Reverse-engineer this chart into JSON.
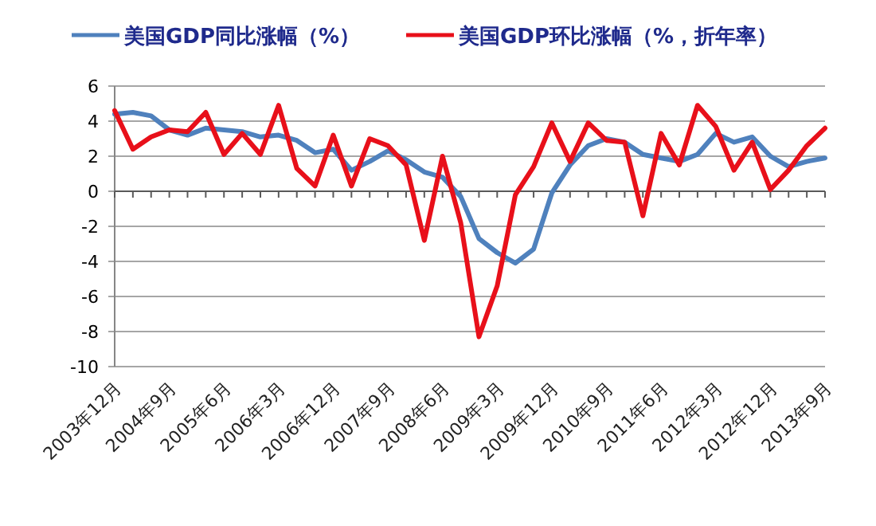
{
  "chart_data": {
    "type": "line",
    "categories": [
      "2003年12月",
      null,
      null,
      "2004年9月",
      null,
      null,
      "2005年6月",
      null,
      null,
      "2006年3月",
      null,
      null,
      "2006年12月",
      null,
      null,
      "2007年9月",
      null,
      null,
      "2008年6月",
      null,
      null,
      "2009年3月",
      null,
      null,
      "2009年12月",
      null,
      null,
      "2010年9月",
      null,
      null,
      "2011年6月",
      null,
      null,
      "2012年3月",
      null,
      null,
      "2012年12月",
      null,
      null,
      "2013年9月"
    ],
    "series": [
      {
        "name": "美国GDP同比涨幅（%）",
        "color": "#4f81bd",
        "values": [
          4.4,
          4.5,
          4.3,
          3.5,
          3.2,
          3.6,
          3.5,
          3.4,
          3.1,
          3.2,
          2.9,
          2.2,
          2.4,
          1.2,
          1.7,
          2.3,
          1.8,
          1.1,
          0.8,
          -0.3,
          -2.7,
          -3.5,
          -4.1,
          -3.3,
          -0.1,
          1.5,
          2.6,
          3.0,
          2.8,
          2.1,
          1.9,
          1.7,
          2.1,
          3.3,
          2.8,
          3.1,
          2.0,
          1.4,
          1.7,
          1.9
        ]
      },
      {
        "name": "美国GDP环比涨幅（%，折年率）",
        "color": "#e8101a",
        "values": [
          4.6,
          2.4,
          3.1,
          3.5,
          3.4,
          4.5,
          2.1,
          3.3,
          2.1,
          4.9,
          1.3,
          0.3,
          3.2,
          0.3,
          3.0,
          2.6,
          1.5,
          -2.8,
          2.0,
          -1.8,
          -8.3,
          -5.4,
          -0.2,
          1.4,
          3.9,
          1.7,
          3.9,
          2.9,
          2.8,
          -1.4,
          3.3,
          1.5,
          4.9,
          3.7,
          1.2,
          2.8,
          0.1,
          1.2,
          2.6,
          3.6
        ]
      }
    ],
    "ylim": [
      -10,
      6
    ],
    "yticks": [
      -10,
      -8,
      -6,
      -4,
      -2,
      0,
      2,
      4,
      6
    ],
    "grid": "y",
    "legend": "top",
    "line_style": "solid",
    "marker": "none"
  }
}
